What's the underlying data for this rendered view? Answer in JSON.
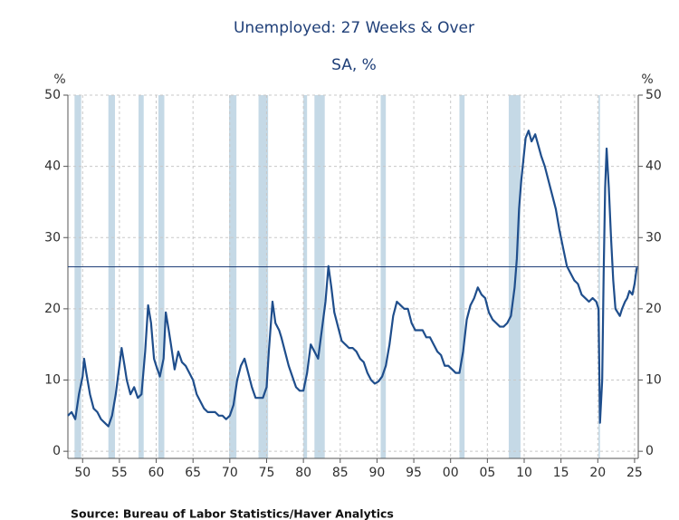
{
  "chart_data": {
    "type": "line",
    "title": "Unemployed: 27 Weeks & Over",
    "subtitle": "SA, %",
    "y_label": "%",
    "y2_label": "%",
    "source": "Source:  Bureau of Labor Statistics/Haver Analytics",
    "xlim": [
      1948,
      2025.5
    ],
    "ylim": [
      -1,
      50
    ],
    "yticks": [
      0,
      10,
      20,
      30,
      40,
      50
    ],
    "xticks": [
      {
        "value": 1950,
        "label": "50"
      },
      {
        "value": 1955,
        "label": "55"
      },
      {
        "value": 1960,
        "label": "60"
      },
      {
        "value": 1965,
        "label": "65"
      },
      {
        "value": 1970,
        "label": "70"
      },
      {
        "value": 1975,
        "label": "75"
      },
      {
        "value": 1980,
        "label": "80"
      },
      {
        "value": 1985,
        "label": "85"
      },
      {
        "value": 1990,
        "label": "90"
      },
      {
        "value": 1995,
        "label": "95"
      },
      {
        "value": 2000,
        "label": "00"
      },
      {
        "value": 2005,
        "label": "05"
      },
      {
        "value": 2010,
        "label": "10"
      },
      {
        "value": 2015,
        "label": "15"
      },
      {
        "value": 2020,
        "label": "20"
      },
      {
        "value": 2025,
        "label": "25"
      }
    ],
    "grid": true,
    "recession_color": "#c5d9e6",
    "recessions": [
      [
        1948.9,
        1949.8
      ],
      [
        1953.5,
        1954.4
      ],
      [
        1957.6,
        1958.3
      ],
      [
        1960.3,
        1961.1
      ],
      [
        1969.9,
        1970.9
      ],
      [
        1973.9,
        1975.2
      ],
      [
        1980.0,
        1980.5
      ],
      [
        1981.5,
        1982.9
      ],
      [
        1990.5,
        1991.2
      ],
      [
        2001.2,
        2001.9
      ],
      [
        2007.9,
        2009.5
      ],
      [
        2020.1,
        2020.3
      ]
    ],
    "reference_line": 25.9,
    "reference_color": "#1f3f78",
    "series": [
      {
        "name": "Unemployed: 27 Weeks & Over",
        "color": "#1f4e8c",
        "x": [
          1948.0,
          1948.5,
          1949.0,
          1949.5,
          1950.0,
          1950.2,
          1950.5,
          1951.0,
          1951.5,
          1952.0,
          1952.5,
          1953.0,
          1953.5,
          1954.0,
          1954.5,
          1955.0,
          1955.3,
          1955.7,
          1956.0,
          1956.5,
          1957.0,
          1957.5,
          1958.0,
          1958.5,
          1958.9,
          1959.3,
          1959.7,
          1960.0,
          1960.5,
          1961.0,
          1961.3,
          1961.7,
          1962.0,
          1962.5,
          1963.0,
          1963.5,
          1964.0,
          1964.5,
          1965.0,
          1965.5,
          1966.0,
          1966.5,
          1967.0,
          1967.5,
          1968.0,
          1968.5,
          1969.0,
          1969.5,
          1970.0,
          1970.5,
          1971.0,
          1971.5,
          1972.0,
          1972.5,
          1973.0,
          1973.5,
          1974.0,
          1974.5,
          1975.0,
          1975.3,
          1975.8,
          1976.2,
          1976.7,
          1977.0,
          1977.5,
          1978.0,
          1978.5,
          1979.0,
          1979.5,
          1980.0,
          1980.5,
          1981.0,
          1981.5,
          1982.0,
          1982.5,
          1983.0,
          1983.4,
          1983.8,
          1984.2,
          1984.7,
          1985.2,
          1985.7,
          1986.2,
          1986.7,
          1987.2,
          1987.7,
          1988.2,
          1988.7,
          1989.2,
          1989.7,
          1990.2,
          1990.7,
          1991.2,
          1991.7,
          1992.2,
          1992.7,
          1993.2,
          1993.7,
          1994.2,
          1994.7,
          1995.2,
          1995.7,
          1996.2,
          1996.7,
          1997.2,
          1997.7,
          1998.2,
          1998.7,
          1999.2,
          1999.7,
          2000.2,
          2000.7,
          2001.2,
          2001.7,
          2002.2,
          2002.7,
          2003.2,
          2003.7,
          2004.2,
          2004.7,
          2005.2,
          2005.7,
          2006.2,
          2006.7,
          2007.2,
          2007.7,
          2008.2,
          2008.7,
          2009.0,
          2009.3,
          2009.6,
          2009.9,
          2010.2,
          2010.6,
          2011.0,
          2011.5,
          2011.9,
          2012.3,
          2012.8,
          2013.3,
          2013.8,
          2014.3,
          2014.8,
          2015.3,
          2015.8,
          2016.3,
          2016.8,
          2017.3,
          2017.8,
          2018.3,
          2018.8,
          2019.3,
          2019.8,
          2020.1,
          2020.3,
          2020.6,
          2020.8,
          2021.0,
          2021.2,
          2021.5,
          2021.8,
          2022.1,
          2022.4,
          2022.7,
          2023.0,
          2023.3,
          2023.7,
          2024.0,
          2024.3,
          2024.7,
          2025.0,
          2025.3
        ],
        "values": [
          5,
          5.5,
          4.5,
          8,
          10.5,
          13,
          11,
          8,
          6,
          5.5,
          4.5,
          4,
          3.5,
          5,
          8,
          12,
          14.5,
          12,
          10,
          8,
          9,
          7.5,
          8,
          14,
          20.5,
          18,
          13,
          12,
          10.5,
          13,
          19.5,
          17,
          15,
          11.5,
          14,
          12.5,
          12,
          11,
          10,
          8,
          7,
          6,
          5.5,
          5.5,
          5.5,
          5,
          5,
          4.5,
          5,
          6.5,
          10,
          12,
          13,
          11,
          9,
          7.5,
          7.5,
          7.5,
          9,
          14,
          21,
          18,
          17,
          16,
          14,
          12,
          10.5,
          9,
          8.5,
          8.5,
          11,
          15,
          14,
          13,
          17,
          21,
          26,
          23,
          19.5,
          17.5,
          15.5,
          15,
          14.5,
          14.5,
          14,
          13,
          12.5,
          11,
          10,
          9.5,
          9.8,
          10.5,
          12,
          15,
          19,
          21,
          20.5,
          20,
          20,
          18,
          17,
          17,
          17,
          16,
          16,
          15,
          14,
          13.5,
          12,
          12,
          11.5,
          11,
          11,
          14,
          18.5,
          20.5,
          21.5,
          23,
          22,
          21.5,
          19.5,
          18.5,
          18,
          17.5,
          17.5,
          18,
          19,
          23,
          27,
          34,
          38,
          41,
          44,
          45,
          43.5,
          44.5,
          43,
          41.5,
          40,
          38,
          36,
          34,
          31,
          28.5,
          26,
          25,
          24,
          23.5,
          22,
          21.5,
          21,
          21.5,
          21,
          20,
          4,
          10,
          25,
          37,
          42.5,
          37,
          30,
          24,
          20,
          19.5,
          19,
          20,
          21,
          21.5,
          22.5,
          22,
          23.5,
          25.8
        ]
      }
    ]
  }
}
